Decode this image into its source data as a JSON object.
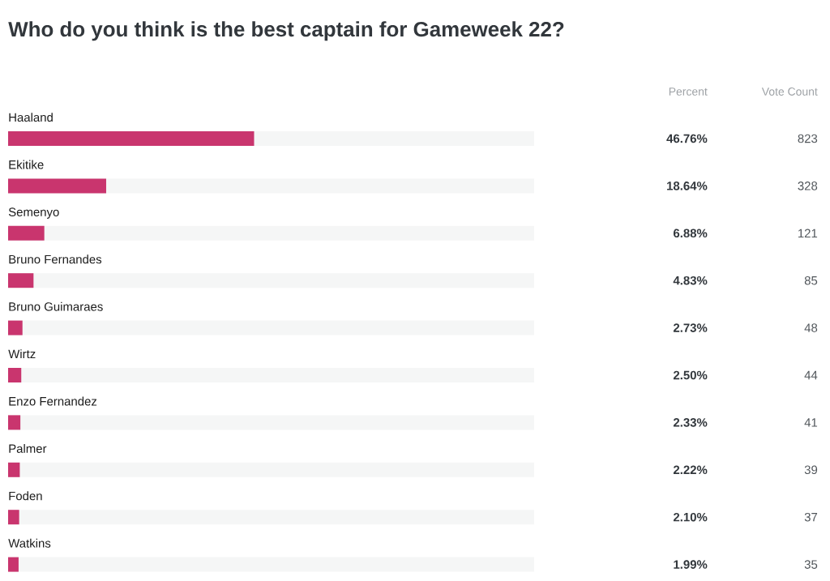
{
  "chart_data": {
    "type": "bar",
    "orientation": "horizontal",
    "title": "Who do you think is the best captain for Gameweek 22?",
    "categories": [
      "Haaland",
      "Ekitike",
      "Semenyo",
      "Bruno Fernandes",
      "Bruno Guimaraes",
      "Wirtz",
      "Enzo Fernandez",
      "Palmer",
      "Foden",
      "Watkins"
    ],
    "values": [
      46.76,
      18.64,
      6.88,
      4.83,
      2.73,
      2.5,
      2.33,
      2.22,
      2.1,
      1.99
    ],
    "value_labels": [
      "46.76%",
      "18.64%",
      "6.88%",
      "4.83%",
      "2.73%",
      "2.50%",
      "2.33%",
      "2.22%",
      "2.10%",
      "1.99%"
    ],
    "color": "#c9356e",
    "xlim": [
      0,
      100
    ],
    "tick_labels": "y",
    "annotations": [
      "Percent",
      "Vote Count",
      "823",
      "328",
      "121",
      "85",
      "48",
      "44",
      "41",
      "39",
      "37",
      "35"
    ]
  }
}
